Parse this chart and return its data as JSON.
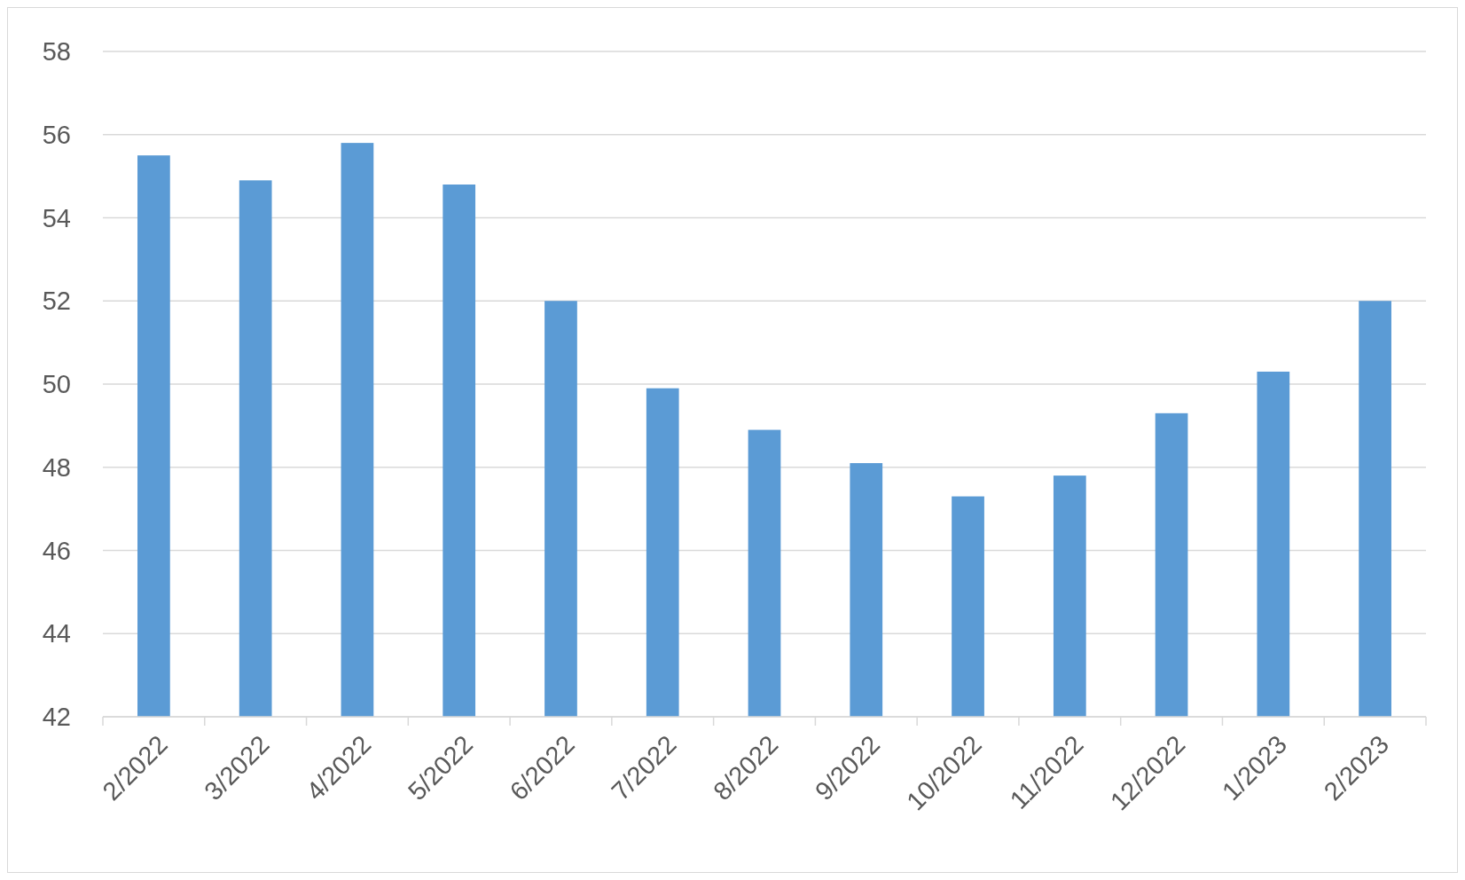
{
  "chart_data": {
    "type": "bar",
    "categories": [
      "2/2022",
      "3/2022",
      "4/2022",
      "5/2022",
      "6/2022",
      "7/2022",
      "8/2022",
      "9/2022",
      "10/2022",
      "11/2022",
      "12/2022",
      "1/2023",
      "2/2023"
    ],
    "values": [
      55.5,
      54.9,
      55.8,
      54.8,
      52.0,
      49.9,
      48.9,
      48.1,
      47.3,
      47.8,
      49.3,
      50.3,
      52.0
    ],
    "color": "#5b9bd5",
    "ylim": [
      42,
      58
    ],
    "yticks": [
      42,
      44,
      46,
      48,
      50,
      52,
      54,
      56,
      58
    ],
    "grid": "y"
  }
}
